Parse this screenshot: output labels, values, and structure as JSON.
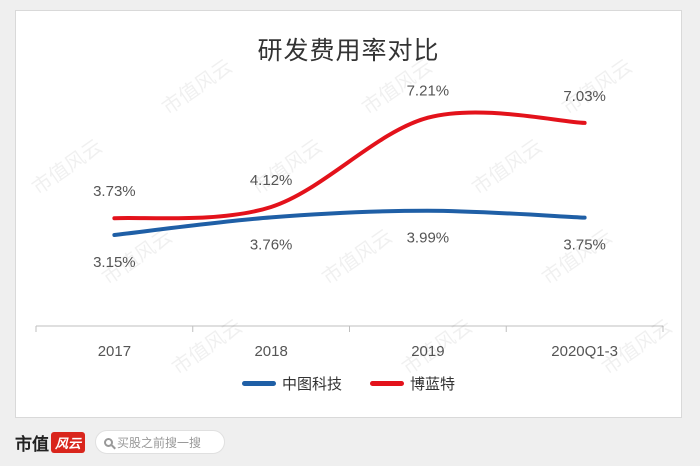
{
  "chart_data": {
    "type": "line",
    "title": "研发费用率对比",
    "categories": [
      "2017",
      "2018",
      "2019",
      "2020Q1-3"
    ],
    "series": [
      {
        "name": "中图科技",
        "values": [
          3.15,
          3.76,
          3.99,
          3.75
        ],
        "labels": [
          "3.15%",
          "3.76%",
          "3.99%",
          "3.75%"
        ],
        "color": "#1f5fa6"
      },
      {
        "name": "博蓝特",
        "values": [
          3.73,
          4.12,
          7.21,
          7.03
        ],
        "labels": [
          "3.73%",
          "4.12%",
          "7.21%",
          "7.03%"
        ],
        "color": "#e3121b"
      }
    ],
    "xlabel": "",
    "ylabel": "",
    "ylim": [
      0,
      9
    ],
    "grid": false,
    "legend": "bottom"
  },
  "footer": {
    "brand_name": "市值",
    "brand_badge": "风云",
    "search_placeholder": "买股之前搜一搜"
  },
  "watermark": "市值风云"
}
